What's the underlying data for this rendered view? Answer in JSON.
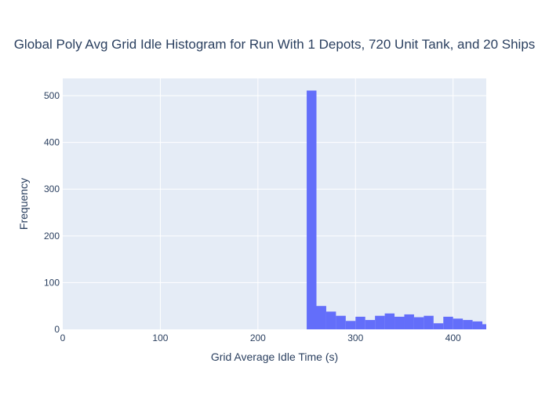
{
  "chart_data": {
    "type": "bar",
    "title": "Global Poly Avg Grid Idle Histogram for Run With 1 Depots, 720 Unit Tank, and 20 Ships",
    "xlabel": "Grid Average Idle Time (s)",
    "ylabel": "Frequency",
    "xlim": [
      0,
      434
    ],
    "ylim": [
      0,
      537
    ],
    "x_ticks": [
      0,
      100,
      200,
      300,
      400
    ],
    "y_ticks": [
      0,
      100,
      200,
      300,
      400,
      500
    ],
    "grid": true,
    "legend": "none",
    "bin_width": 10,
    "bins": [
      {
        "start": 250,
        "end": 260,
        "value": 511
      },
      {
        "start": 260,
        "end": 270,
        "value": 50
      },
      {
        "start": 270,
        "end": 280,
        "value": 38
      },
      {
        "start": 280,
        "end": 290,
        "value": 29
      },
      {
        "start": 290,
        "end": 300,
        "value": 18
      },
      {
        "start": 300,
        "end": 310,
        "value": 27
      },
      {
        "start": 310,
        "end": 320,
        "value": 20
      },
      {
        "start": 320,
        "end": 330,
        "value": 29
      },
      {
        "start": 330,
        "end": 340,
        "value": 34
      },
      {
        "start": 340,
        "end": 350,
        "value": 27
      },
      {
        "start": 350,
        "end": 360,
        "value": 32
      },
      {
        "start": 360,
        "end": 370,
        "value": 26
      },
      {
        "start": 370,
        "end": 380,
        "value": 29
      },
      {
        "start": 380,
        "end": 390,
        "value": 13
      },
      {
        "start": 390,
        "end": 400,
        "value": 27
      },
      {
        "start": 400,
        "end": 410,
        "value": 23
      },
      {
        "start": 410,
        "end": 420,
        "value": 20
      },
      {
        "start": 420,
        "end": 430,
        "value": 17
      },
      {
        "start": 430,
        "end": 440,
        "value": 11
      }
    ]
  },
  "colors": {
    "plot_background": "#e5ecf6",
    "bar": "#636efa",
    "grid": "#ffffff",
    "text": "#2a3f5f"
  }
}
